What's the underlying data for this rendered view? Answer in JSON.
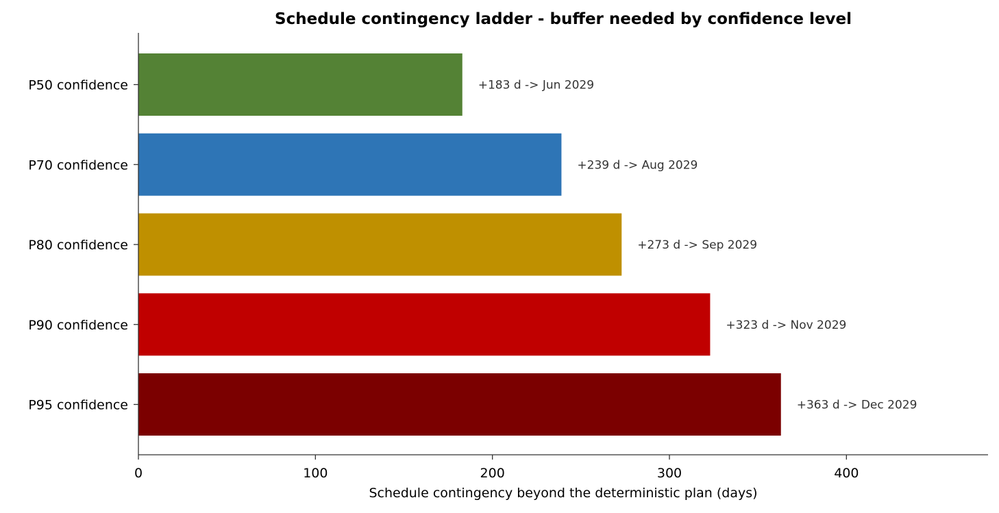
{
  "chart_data": {
    "type": "bar",
    "orientation": "horizontal",
    "title": "Schedule contingency ladder - buffer needed by confidence level",
    "xlabel": "Schedule contingency beyond the deterministic plan  (days)",
    "ylabel": "",
    "xlim": [
      0,
      480
    ],
    "xticks": [
      0,
      100,
      200,
      300,
      400
    ],
    "grid": false,
    "legend": "none",
    "categories": [
      "P50 confidence",
      "P70 confidence",
      "P80 confidence",
      "P90 confidence",
      "P95 confidence"
    ],
    "values": [
      183,
      239,
      273,
      323,
      363
    ],
    "colors": [
      "#548235",
      "#2e75b6",
      "#bf9000",
      "#c00000",
      "#7b0000"
    ],
    "data_labels": [
      "+183 d  ->  Jun 2029",
      "+239 d  ->  Aug 2029",
      "+273 d  ->  Sep 2029",
      "+323 d  ->  Nov 2029",
      "+363 d  ->  Dec 2029"
    ]
  }
}
